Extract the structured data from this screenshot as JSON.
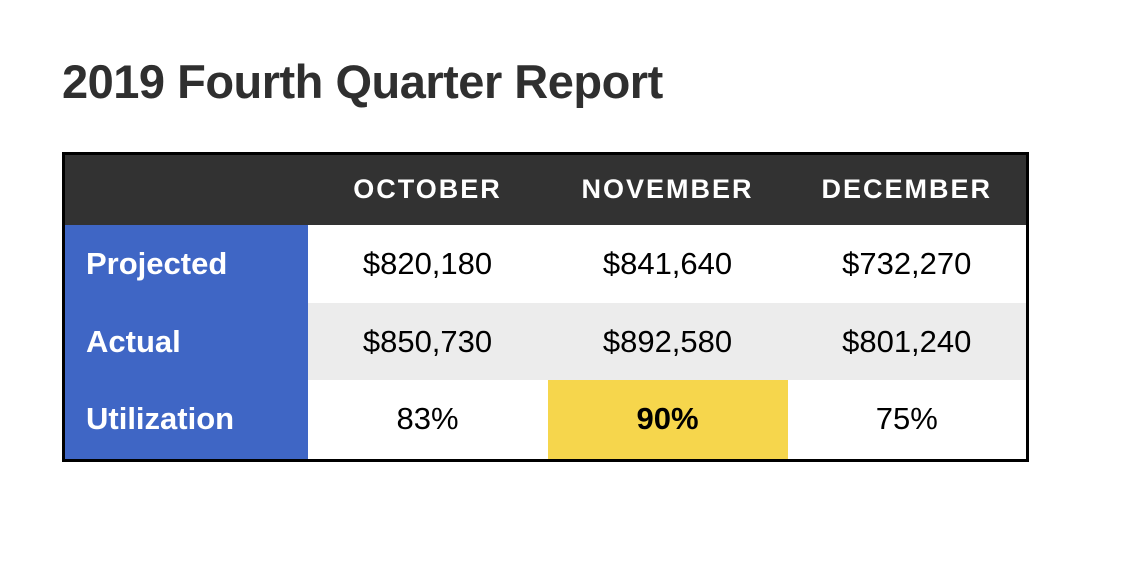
{
  "title": "2019 Fourth Quarter Report",
  "table": {
    "columns": [
      "OCTOBER",
      "NOVEMBER",
      "DECEMBER"
    ],
    "rows": [
      {
        "label": "Projected",
        "values": [
          "$820,180",
          "$841,640",
          "$732,270"
        ]
      },
      {
        "label": "Actual",
        "values": [
          "$850,730",
          "$892,580",
          "$801,240"
        ]
      },
      {
        "label": "Utilization",
        "values": [
          "83%",
          "90%",
          "75%"
        ]
      }
    ],
    "highlight_cell": {
      "row": 2,
      "col": 1
    }
  },
  "colors": {
    "title_text": "#2f2f2f",
    "header_bg": "#323232",
    "header_text": "#ffffff",
    "label_bg": "#3f66c5",
    "label_text": "#ffffff",
    "alt_row_bg": "#ececec",
    "highlight_bg": "#f6d64c",
    "value_text": "#000000",
    "table_border": "#000000"
  }
}
